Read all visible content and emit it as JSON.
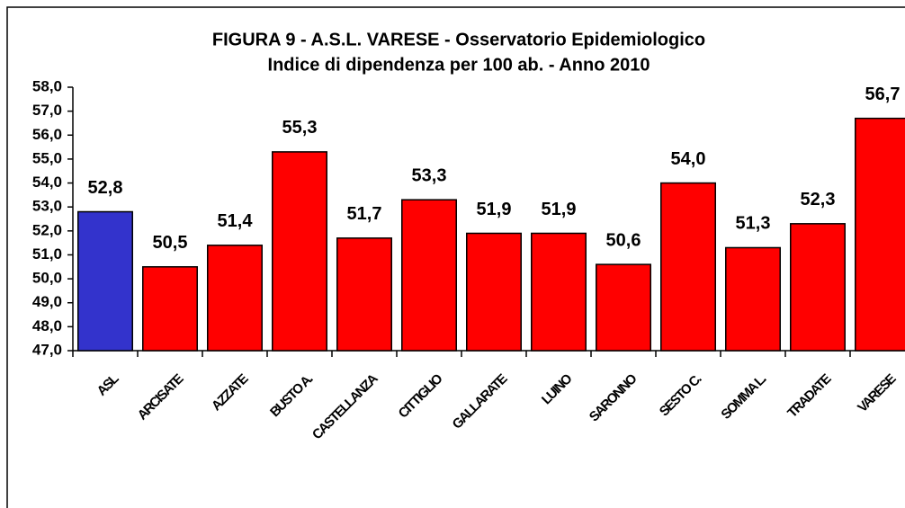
{
  "chart_data": {
    "type": "bar",
    "title": "FIGURA 9 - A.S.L.  VARESE - Osservatorio Epidemiologico",
    "subtitle": "Indice di dipendenza per 100 ab. - Anno 2010",
    "categories": [
      "ASL",
      "ARCISATE",
      "AZZATE",
      "BUSTO A.",
      "CASTELLANZA",
      "CITTIGLIO",
      "GALLARATE",
      "LUINO",
      "SARONNO",
      "SESTO C.",
      "SOMMA L.",
      "TRADATE",
      "VARESE"
    ],
    "values": [
      52.8,
      50.5,
      51.4,
      55.3,
      51.7,
      53.3,
      51.9,
      51.9,
      50.6,
      54.0,
      51.3,
      52.3,
      56.7
    ],
    "value_labels": [
      "52,8",
      "50,5",
      "51,4",
      "55,3",
      "51,7",
      "53,3",
      "51,9",
      "51,9",
      "50,6",
      "54,0",
      "51,3",
      "52,3",
      "56,7"
    ],
    "colors": [
      "#3333cc",
      "#ff0000",
      "#ff0000",
      "#ff0000",
      "#ff0000",
      "#ff0000",
      "#ff0000",
      "#ff0000",
      "#ff0000",
      "#ff0000",
      "#ff0000",
      "#ff0000",
      "#ff0000"
    ],
    "ylim": [
      47,
      58
    ],
    "yticks": [
      {
        "value": 47,
        "label": "47,0"
      },
      {
        "value": 48,
        "label": "48,0"
      },
      {
        "value": 49,
        "label": "49,0"
      },
      {
        "value": 50,
        "label": "50,0"
      },
      {
        "value": 51,
        "label": "51,0"
      },
      {
        "value": 52,
        "label": "52,0"
      },
      {
        "value": 53,
        "label": "53,0"
      },
      {
        "value": 54,
        "label": "54,0"
      },
      {
        "value": 55,
        "label": "55,0"
      },
      {
        "value": 56,
        "label": "56,0"
      },
      {
        "value": 57,
        "label": "57,0"
      },
      {
        "value": 58,
        "label": "58,0"
      }
    ],
    "grid": false
  }
}
